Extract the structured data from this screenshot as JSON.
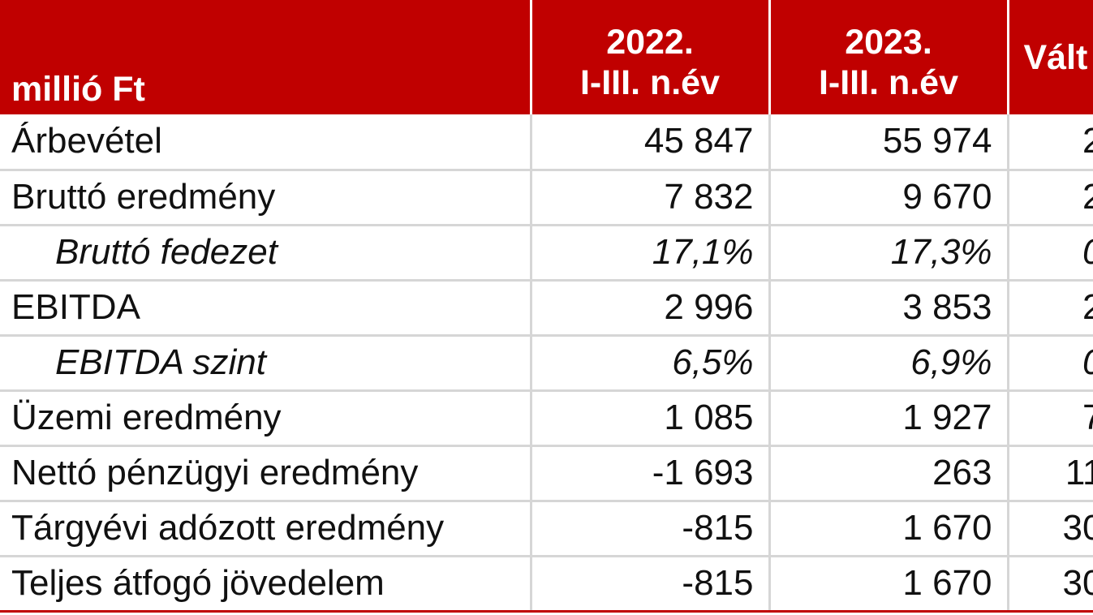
{
  "table": {
    "header": {
      "unit": "millió Ft",
      "col1_line1": "2022.",
      "col1_line2": "I-III. n.év",
      "col2_line1": "2023.",
      "col2_line2": "I-III. n.év",
      "col3": "Vált"
    },
    "rows": [
      {
        "label": "Árbevétel",
        "v2022": "45 847",
        "v2023": "55 974",
        "change": "2"
      },
      {
        "label": "Bruttó eredmény",
        "v2022": "7 832",
        "v2023": "9 670",
        "change": "2"
      },
      {
        "label": "Bruttó fedezet",
        "v2022": "17,1%",
        "v2023": "17,3%",
        "change": "0"
      },
      {
        "label": "EBITDA",
        "v2022": "2 996",
        "v2023": "3 853",
        "change": "2"
      },
      {
        "label": "EBITDA szint",
        "v2022": "6,5%",
        "v2023": "6,9%",
        "change": "0"
      },
      {
        "label": "Üzemi eredmény",
        "v2022": "1 085",
        "v2023": "1 927",
        "change": "7"
      },
      {
        "label": "Nettó pénzügyi eredmény",
        "v2022": "-1 693",
        "v2023": "263",
        "change": "11"
      },
      {
        "label": "Tárgyévi adózott eredmény",
        "v2022": "-815",
        "v2023": "1 670",
        "change": "30"
      },
      {
        "label": "Teljes átfogó jövedelem",
        "v2022": "-815",
        "v2023": "1 670",
        "change": "30"
      }
    ]
  },
  "colors": {
    "header_bg": "#c00000",
    "header_text": "#ffffff",
    "grid": "#d6d6d6"
  }
}
